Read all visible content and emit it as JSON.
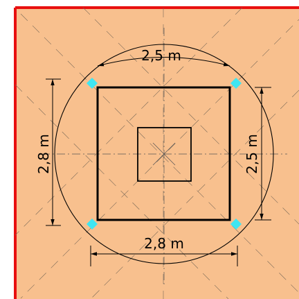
{
  "colors": {
    "background": "#f8c08e",
    "frame": "#e81010",
    "outline": "#000000",
    "marker": "#3fe6f2"
  },
  "dimensions": {
    "top_width": "2,5 m",
    "bottom_width": "2,8 m",
    "left_height": "2,8 m",
    "right_height": "2,5 m"
  }
}
